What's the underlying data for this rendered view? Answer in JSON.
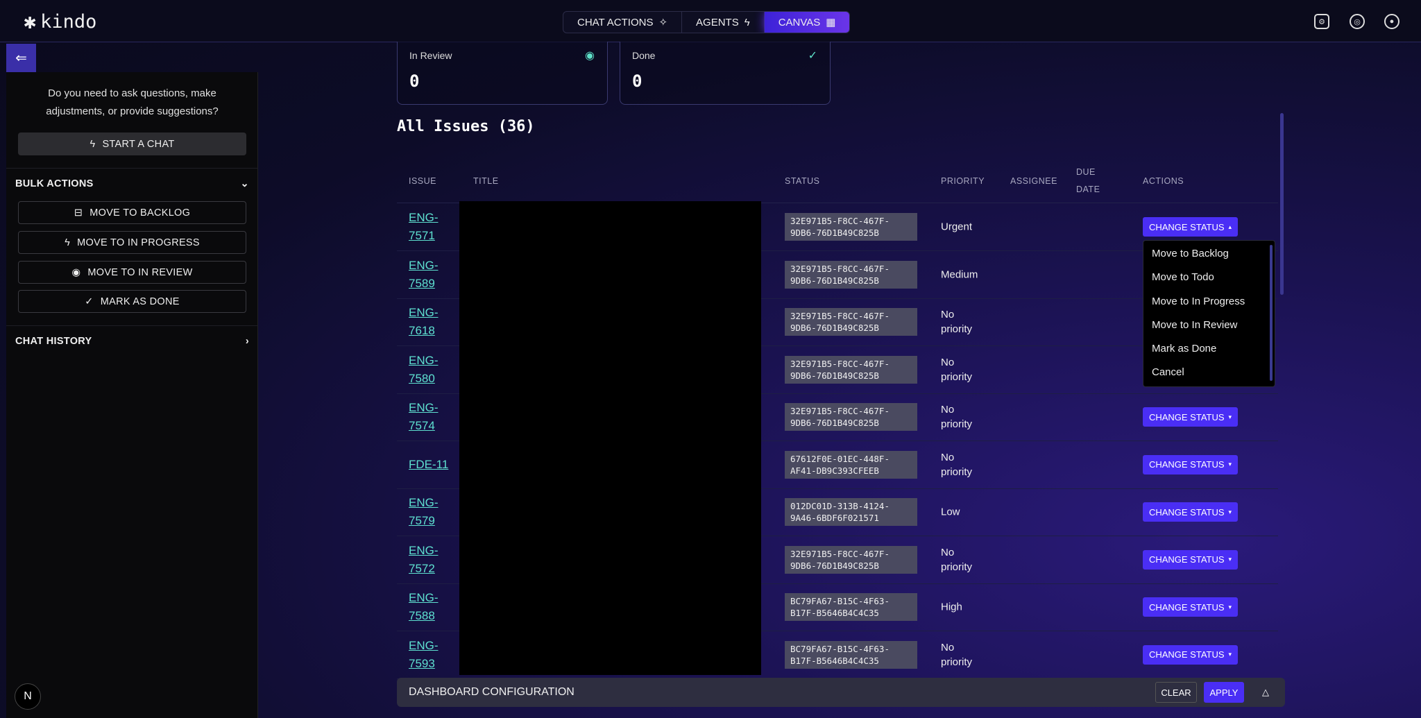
{
  "header": {
    "logo": "kindo",
    "nav": [
      {
        "label": "CHAT ACTIONS",
        "icon": "sparkle-icon"
      },
      {
        "label": "AGENTS",
        "icon": "lightning-icon"
      },
      {
        "label": "CANVAS",
        "icon": "grid-icon",
        "active": true
      }
    ],
    "icons": [
      "settings-icon",
      "help-icon",
      "user-icon"
    ]
  },
  "sidebar": {
    "prompt": "Do you need to ask questions, make adjustments, or provide suggestions?",
    "start_chat": "START A CHAT",
    "bulk_actions": "BULK ACTIONS",
    "bulk": [
      "MOVE TO BACKLOG",
      "MOVE TO IN PROGRESS",
      "MOVE TO IN REVIEW",
      "MARK AS DONE"
    ],
    "chat_history": "CHAT HISTORY",
    "avatar": "N"
  },
  "cards": [
    {
      "label": "In Review",
      "value": "0"
    },
    {
      "label": "Done",
      "value": "0"
    }
  ],
  "issues": {
    "title": "All Issues (36)",
    "columns": [
      "ISSUE",
      "TITLE",
      "STATUS",
      "PRIORITY",
      "ASSIGNEE",
      "DUE DATE",
      "ACTIONS"
    ],
    "action_label": "CHANGE STATUS",
    "rows": [
      {
        "id": "ENG-7571",
        "status": "32E971B5-F8CC-467F-9DB6-76D1B49C825B",
        "priority": "Urgent"
      },
      {
        "id": "ENG-7589",
        "status": "32E971B5-F8CC-467F-9DB6-76D1B49C825B",
        "priority": "Medium"
      },
      {
        "id": "ENG-7618",
        "status": "32E971B5-F8CC-467F-9DB6-76D1B49C825B",
        "priority": "No priority"
      },
      {
        "id": "ENG-7580",
        "status": "32E971B5-F8CC-467F-9DB6-76D1B49C825B",
        "priority": "No priority"
      },
      {
        "id": "ENG-7574",
        "status": "32E971B5-F8CC-467F-9DB6-76D1B49C825B",
        "priority": "No priority"
      },
      {
        "id": "FDE-11",
        "status": "67612F0E-01EC-448F-AF41-DB9C393CFEEB",
        "priority": "No priority"
      },
      {
        "id": "ENG-7579",
        "status": "012DC01D-313B-4124-9A46-6BDF6F021571",
        "priority": "Low"
      },
      {
        "id": "ENG-7572",
        "status": "32E971B5-F8CC-467F-9DB6-76D1B49C825B",
        "priority": "No priority"
      },
      {
        "id": "ENG-7588",
        "status": "BC79FA67-B15C-4F63-B17F-B5646B4C4C35",
        "priority": "High"
      },
      {
        "id": "ENG-7593",
        "status": "BC79FA67-B15C-4F63-B17F-B5646B4C4C35",
        "priority": "No priority"
      }
    ]
  },
  "dropdown": {
    "items": [
      "Move to Backlog",
      "Move to Todo",
      "Move to In Progress",
      "Move to In Review",
      "Mark as Done",
      "Cancel"
    ]
  },
  "config": {
    "title": "DASHBOARD CONFIGURATION",
    "clear": "CLEAR",
    "apply": "APPLY"
  },
  "colors": {
    "accent": "#4a2ef5",
    "link": "#5ee0d0",
    "badge": "#4a4a60"
  }
}
